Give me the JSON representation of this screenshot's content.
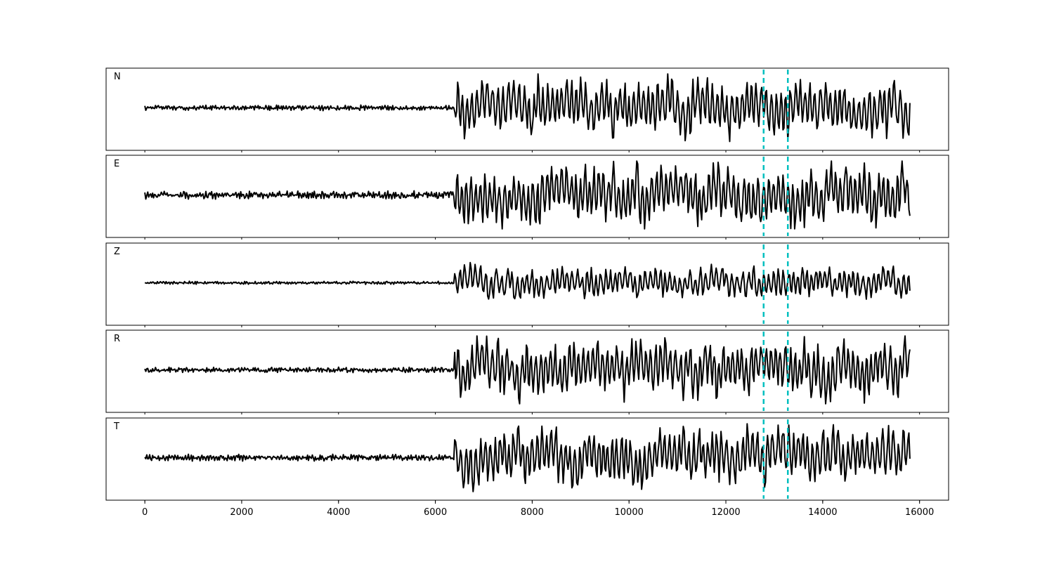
{
  "chart_data": {
    "type": "line",
    "xlim": [
      -800,
      16600
    ],
    "x_ticks": [
      0,
      2000,
      4000,
      6000,
      8000,
      10000,
      12000,
      14000,
      16000
    ],
    "x_tick_labels": [
      "0",
      "2000",
      "4000",
      "6000",
      "8000",
      "10000",
      "12000",
      "14000",
      "16000"
    ],
    "markers": [
      12780,
      13280
    ],
    "marker_color": "#00bfbf",
    "trace_color": "#000000",
    "samples": 15800,
    "panels": [
      {
        "label": "N",
        "noise": 0.09,
        "amp": 1.0,
        "onset": 6400,
        "seed": 11
      },
      {
        "label": "E",
        "noise": 0.13,
        "amp": 1.05,
        "onset": 6400,
        "seed": 23
      },
      {
        "label": "Z",
        "noise": 0.05,
        "amp": 0.55,
        "onset": 6400,
        "seed": 37
      },
      {
        "label": "R",
        "noise": 0.09,
        "amp": 1.0,
        "onset": 6400,
        "seed": 41
      },
      {
        "label": "T",
        "noise": 0.11,
        "amp": 1.0,
        "onset": 6400,
        "seed": 53
      }
    ]
  }
}
